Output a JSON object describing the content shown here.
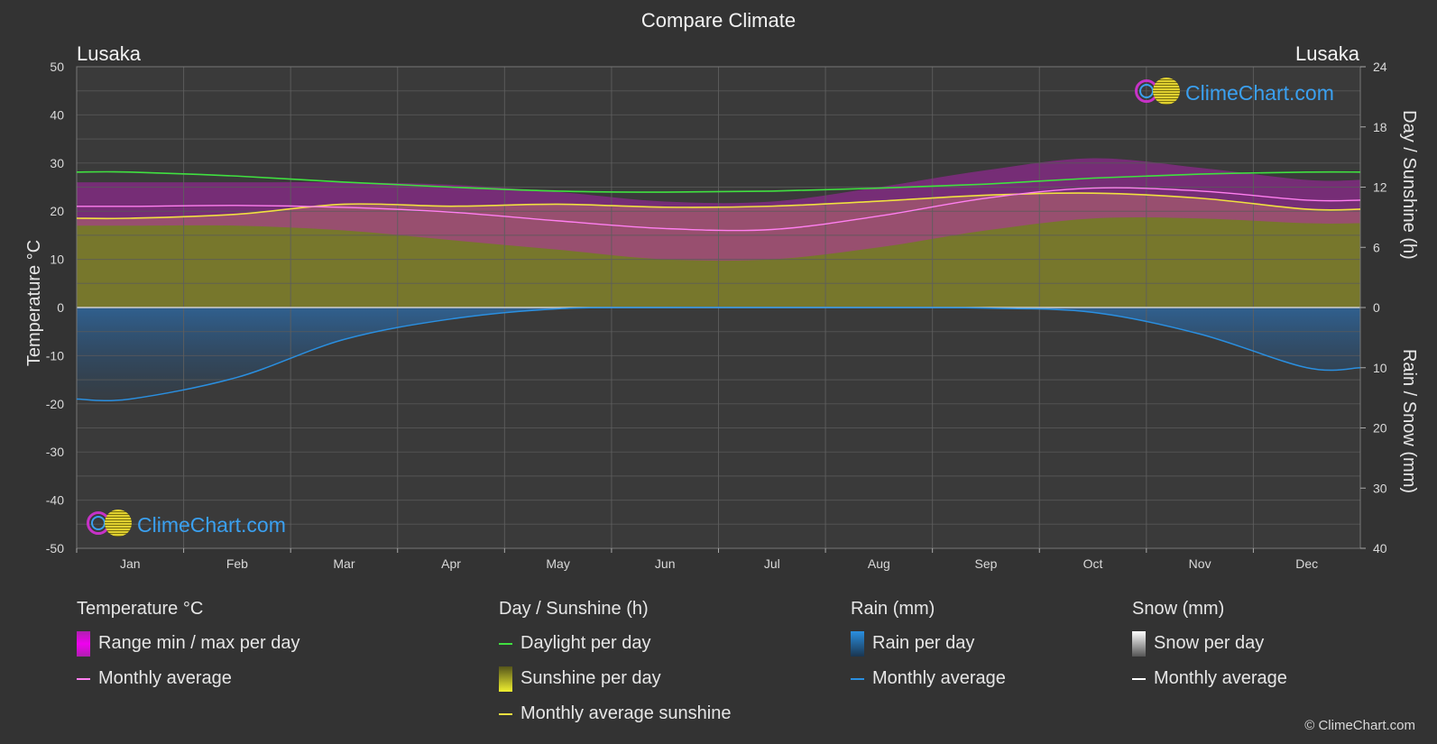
{
  "title": "Compare Climate",
  "location_left": "Lusaka",
  "location_right": "Lusaka",
  "axes": {
    "left_label": "Temperature °C",
    "right_top_label": "Day / Sunshine (h)",
    "right_bottom_label": "Rain / Snow (mm)",
    "left_ticks": [
      "50",
      "40",
      "30",
      "20",
      "10",
      "0",
      "-10",
      "-20",
      "-30",
      "-40",
      "-50"
    ],
    "right_top_ticks": [
      "24",
      "18",
      "12",
      "6",
      "0"
    ],
    "right_bottom_ticks": [
      "0",
      "10",
      "20",
      "30",
      "40"
    ]
  },
  "legend": {
    "temperature": {
      "header": "Temperature °C",
      "range": "Range min / max per day",
      "avg": "Monthly average"
    },
    "sunshine": {
      "header": "Day / Sunshine (h)",
      "daylight": "Daylight per day",
      "sunshine": "Sunshine per day",
      "avg": "Monthly average sunshine"
    },
    "rain": {
      "header": "Rain (mm)",
      "per_day": "Rain per day",
      "avg": "Monthly average"
    },
    "snow": {
      "header": "Snow (mm)",
      "per_day": "Snow per day",
      "avg": "Monthly average"
    }
  },
  "watermark": "ClimeChart.com",
  "copyright": "© ClimeChart.com",
  "colors": {
    "background": "#333333",
    "temp_range": "#c020c0",
    "temp_avg": "#ff7ff0",
    "daylight": "#40e040",
    "sunshine_fill": "#8c8c28",
    "sunshine_avg": "#f0e040",
    "rain_fill": "#1e64a0",
    "rain_avg": "#2a8fe0",
    "snow_avg": "#ffffff"
  },
  "chart_data": {
    "type": "line",
    "categories": [
      "Jan",
      "Feb",
      "Mar",
      "Apr",
      "May",
      "Jun",
      "Jul",
      "Aug",
      "Sep",
      "Oct",
      "Nov",
      "Dec"
    ],
    "temp_ylim": [
      -50,
      50
    ],
    "sun_ylim": [
      0,
      24
    ],
    "rain_ylim": [
      0,
      40
    ],
    "series": [
      {
        "name": "Daylight per day",
        "axis": "sun",
        "values": [
          13.5,
          13.1,
          12.5,
          12.0,
          11.6,
          11.5,
          11.6,
          11.9,
          12.3,
          12.9,
          13.3,
          13.5
        ]
      },
      {
        "name": "Monthly average sunshine",
        "axis": "sun",
        "values": [
          8.9,
          9.3,
          10.3,
          10.1,
          10.3,
          10.0,
          10.1,
          10.6,
          11.2,
          11.4,
          10.9,
          9.8
        ]
      },
      {
        "name": "Monthly average",
        "axis": "temp",
        "values": [
          21.0,
          21.2,
          20.8,
          19.8,
          18.0,
          16.4,
          16.2,
          19.0,
          22.7,
          24.8,
          24.2,
          22.3
        ]
      },
      {
        "name": "Temperature max",
        "axis": "temp",
        "values": [
          26.0,
          26.0,
          26.0,
          25.5,
          24.0,
          22.0,
          22.0,
          25.0,
          28.5,
          31.0,
          29.0,
          26.5
        ]
      },
      {
        "name": "Temperature min",
        "axis": "temp",
        "values": [
          17.0,
          17.0,
          16.0,
          14.0,
          12.0,
          10.0,
          10.0,
          12.5,
          16.0,
          18.5,
          18.5,
          17.5
        ]
      },
      {
        "name": "Rain monthly average",
        "axis": "rain",
        "values": [
          15.2,
          11.6,
          5.3,
          1.9,
          0.2,
          0.0,
          0.0,
          0.0,
          0.1,
          0.8,
          4.4,
          10.0
        ]
      },
      {
        "name": "Snow monthly average",
        "axis": "rain",
        "values": [
          0,
          0,
          0,
          0,
          0,
          0,
          0,
          0,
          0,
          0,
          0,
          0
        ]
      }
    ]
  }
}
